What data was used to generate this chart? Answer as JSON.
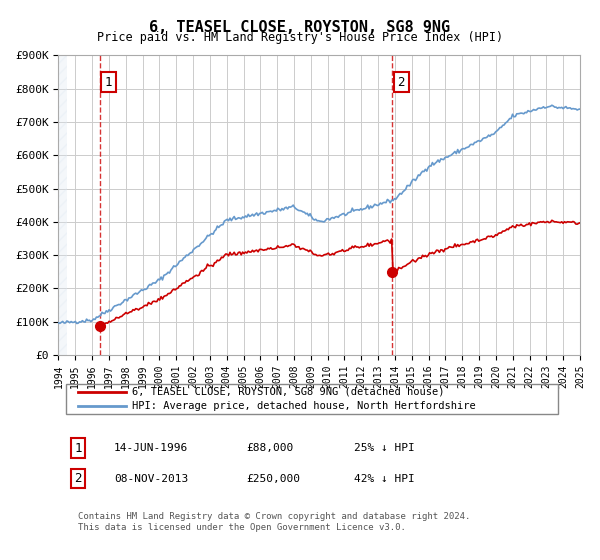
{
  "title": "6, TEASEL CLOSE, ROYSTON, SG8 9NG",
  "subtitle": "Price paid vs. HM Land Registry's House Price Index (HPI)",
  "ylabel_values": [
    "£0",
    "£100K",
    "£200K",
    "£300K",
    "£400K",
    "£500K",
    "£600K",
    "£700K",
    "£800K",
    "£900K"
  ],
  "ylim": [
    0,
    900000
  ],
  "yticks": [
    0,
    100000,
    200000,
    300000,
    400000,
    500000,
    600000,
    700000,
    800000,
    900000
  ],
  "sale1_date": 1996.45,
  "sale1_price": 88000,
  "sale1_label": "1",
  "sale1_annotation": "14-JUN-1996    £88,000    25% ↓ HPI",
  "sale2_date": 2013.85,
  "sale2_price": 250000,
  "sale2_label": "2",
  "sale2_annotation": "08-NOV-2013    £250,000    42% ↓ HPI",
  "legend_line1": "6, TEASEL CLOSE, ROYSTON, SG8 9NG (detached house)",
  "legend_line2": "HPI: Average price, detached house, North Hertfordshire",
  "footer": "Contains HM Land Registry data © Crown copyright and database right 2024.\nThis data is licensed under the Open Government Licence v3.0.",
  "price_color": "#cc0000",
  "hpi_color": "#6699cc",
  "vline_color": "#cc0000",
  "background_hatch": "#dce6f1",
  "xstart": 1994,
  "xend": 2025
}
